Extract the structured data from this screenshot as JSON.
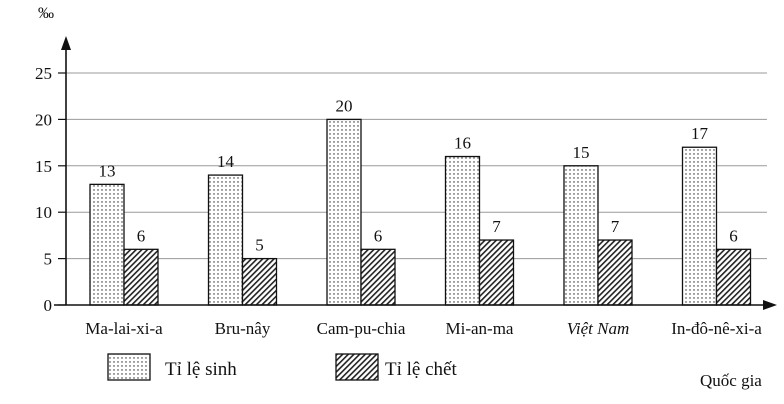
{
  "chart_data": {
    "type": "bar",
    "title": "",
    "ylabel": "‰",
    "xlabel": "Quốc gia",
    "ylim": [
      0,
      25
    ],
    "yticks": [
      0,
      5,
      10,
      15,
      20,
      25
    ],
    "grid": true,
    "legend_position": "bottom-left",
    "categories": [
      "Ma-lai-xi-a",
      "Bru-nây",
      "Cam-pu-chia",
      "Mi-an-ma",
      "Việt Nam",
      "In-đô-nê-xi-a"
    ],
    "italic_categories": [
      "Việt Nam"
    ],
    "series": [
      {
        "name": "Tỉ lệ sinh",
        "pattern": "dots",
        "values": [
          13,
          14,
          20,
          16,
          15,
          17
        ]
      },
      {
        "name": "Tỉ lệ chết",
        "pattern": "hatch",
        "values": [
          6,
          5,
          6,
          7,
          7,
          6
        ]
      }
    ]
  },
  "colors": {
    "ink": "#111111",
    "grid": "#9a9a9a",
    "background": "#ffffff"
  }
}
